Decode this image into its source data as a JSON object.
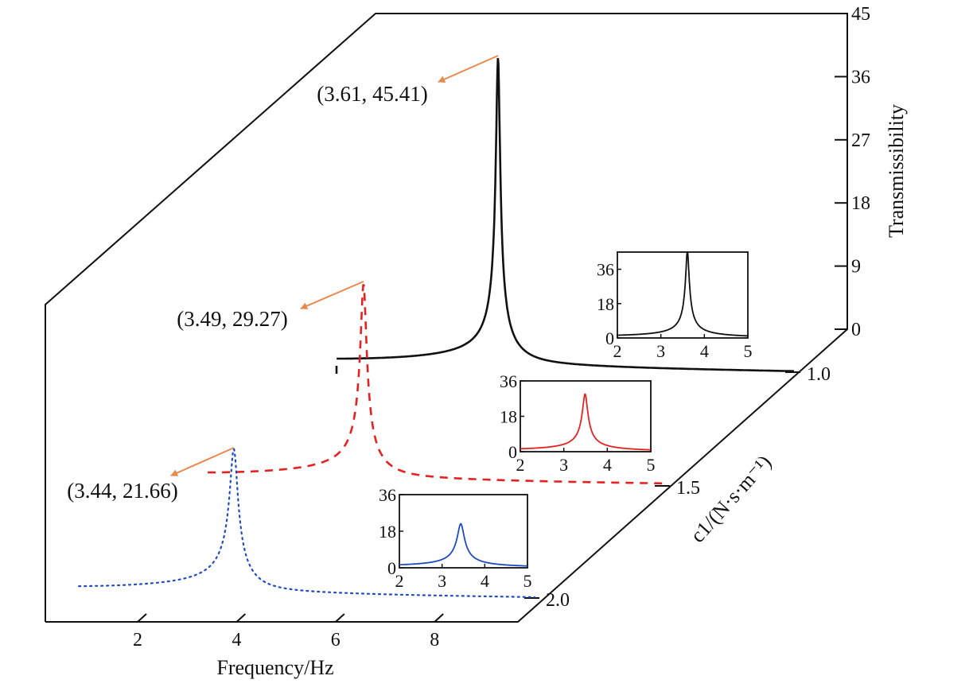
{
  "colors": {
    "frame": "#111111",
    "arrow": "#e8894e",
    "c1_series": "#111111",
    "c15_series": "#e52222",
    "c2_series": "#1f4bbf"
  },
  "chart_data": [
    {
      "type": "line",
      "projection": "3d",
      "x_axis": {
        "label": "Frequency/Hz",
        "ticks": [
          2,
          4,
          6,
          8
        ]
      },
      "depth_axis": {
        "label": "c1/(N·s·m⁻¹)",
        "ticks": [
          1.0,
          1.5,
          2.0
        ],
        "tick_labels": [
          "1.0",
          "1.5",
          "2.0"
        ]
      },
      "z_axis": {
        "label": "Transmissibility",
        "ticks": [
          0,
          9,
          18,
          27,
          36,
          45
        ],
        "range": [
          0,
          45
        ]
      },
      "series": [
        {
          "depth": 1.0,
          "style": "solid",
          "color": "#111111",
          "peak": {
            "x": 3.61,
            "y": 45.41
          },
          "annotation": "(3.61, 45.41)"
        },
        {
          "depth": 1.5,
          "style": "dashed",
          "color": "#e52222",
          "peak": {
            "x": 3.49,
            "y": 29.27
          },
          "annotation": "(3.49, 29.27)"
        },
        {
          "depth": 2.0,
          "style": "dotted",
          "color": "#1f4bbf",
          "peak": {
            "x": 3.44,
            "y": 21.66
          },
          "annotation": "(3.44, 21.66)"
        }
      ]
    },
    {
      "type": "line",
      "depth": 1.0,
      "color": "#111111",
      "xlim": [
        2,
        5
      ],
      "x_ticks": [
        2,
        3,
        4,
        5
      ],
      "ylim": [
        0,
        45
      ],
      "y_ticks": [
        0,
        18,
        36
      ],
      "peak": {
        "x": 3.61,
        "y": 45.41
      }
    },
    {
      "type": "line",
      "depth": 1.5,
      "color": "#e52222",
      "xlim": [
        2,
        5
      ],
      "x_ticks": [
        2,
        3,
        4,
        5
      ],
      "ylim": [
        0,
        36
      ],
      "y_ticks": [
        0,
        18,
        36
      ],
      "peak": {
        "x": 3.49,
        "y": 29.27
      }
    },
    {
      "type": "line",
      "depth": 2.0,
      "color": "#1f4bbf",
      "xlim": [
        2,
        5
      ],
      "x_ticks": [
        2,
        3,
        4,
        5
      ],
      "ylim": [
        0,
        36
      ],
      "y_ticks": [
        0,
        18,
        36
      ],
      "peak": {
        "x": 3.44,
        "y": 21.66
      }
    }
  ]
}
